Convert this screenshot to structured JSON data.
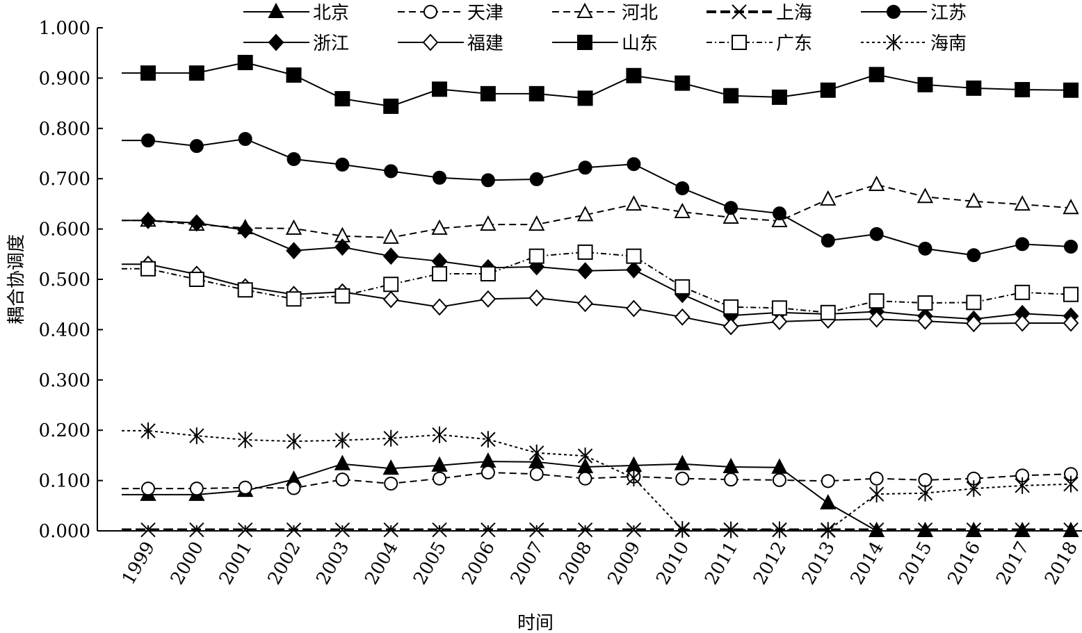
{
  "chart_data": {
    "type": "line",
    "title": "",
    "xlabel": "时间",
    "ylabel": "耦合协调度",
    "ylim": [
      0,
      1
    ],
    "yticks": [
      "0.000",
      "0.100",
      "0.200",
      "0.300",
      "0.400",
      "0.500",
      "0.600",
      "0.700",
      "0.800",
      "0.900",
      "1.000"
    ],
    "categories": [
      "1999",
      "2000",
      "2001",
      "2002",
      "2003",
      "2004",
      "2005",
      "2006",
      "2007",
      "2008",
      "2009",
      "2010",
      "2011",
      "2012",
      "2013",
      "2014",
      "2015",
      "2016",
      "2017",
      "2018"
    ],
    "legend_position": "top",
    "series": [
      {
        "name": "北京",
        "marker": "filled-triangle",
        "dash": "solid",
        "values": [
          0.072,
          0.072,
          0.08,
          0.102,
          0.133,
          0.124,
          0.13,
          0.138,
          0.137,
          0.127,
          0.13,
          0.133,
          0.127,
          0.126,
          0.055,
          0.0,
          0.0,
          0.0,
          0.0,
          0.0
        ]
      },
      {
        "name": "天津",
        "marker": "open-circle",
        "dash": "dashed",
        "values": [
          0.084,
          0.084,
          0.086,
          0.085,
          0.102,
          0.094,
          0.104,
          0.116,
          0.113,
          0.104,
          0.108,
          0.104,
          0.102,
          0.101,
          0.099,
          0.104,
          0.101,
          0.104,
          0.11,
          0.113
        ]
      },
      {
        "name": "河北",
        "marker": "open-triangle",
        "dash": "dashed",
        "values": [
          0.617,
          0.609,
          0.602,
          0.601,
          0.586,
          0.583,
          0.601,
          0.609,
          0.609,
          0.628,
          0.649,
          0.634,
          0.623,
          0.616,
          0.659,
          0.688,
          0.664,
          0.655,
          0.649,
          0.642
        ]
      },
      {
        "name": "上海",
        "marker": "x",
        "dash": "thick-dashed",
        "values": [
          0.002,
          0.002,
          0.002,
          0.002,
          0.002,
          0.002,
          0.002,
          0.002,
          0.002,
          0.002,
          0.002,
          0.002,
          0.002,
          0.002,
          0.002,
          0.002,
          0.002,
          0.002,
          0.002,
          0.002
        ]
      },
      {
        "name": "江苏",
        "marker": "filled-circle",
        "dash": "solid",
        "values": [
          0.776,
          0.765,
          0.779,
          0.739,
          0.728,
          0.715,
          0.702,
          0.697,
          0.699,
          0.722,
          0.729,
          0.681,
          0.642,
          0.631,
          0.577,
          0.59,
          0.561,
          0.548,
          0.57,
          0.565
        ]
      },
      {
        "name": "浙江",
        "marker": "filled-diamond",
        "dash": "solid",
        "values": [
          0.617,
          0.612,
          0.598,
          0.557,
          0.564,
          0.546,
          0.536,
          0.523,
          0.525,
          0.517,
          0.519,
          0.47,
          0.428,
          0.434,
          0.431,
          0.436,
          0.427,
          0.421,
          0.432,
          0.427
        ]
      },
      {
        "name": "福建",
        "marker": "open-diamond",
        "dash": "solid",
        "values": [
          0.53,
          0.51,
          0.485,
          0.47,
          0.475,
          0.46,
          0.445,
          0.461,
          0.463,
          0.452,
          0.442,
          0.425,
          0.406,
          0.416,
          0.419,
          0.421,
          0.417,
          0.412,
          0.413,
          0.413
        ]
      },
      {
        "name": "山东",
        "marker": "filled-square",
        "dash": "solid",
        "values": [
          0.91,
          0.91,
          0.931,
          0.906,
          0.859,
          0.844,
          0.878,
          0.869,
          0.869,
          0.86,
          0.905,
          0.89,
          0.865,
          0.862,
          0.876,
          0.907,
          0.887,
          0.88,
          0.877,
          0.876
        ]
      },
      {
        "name": "广东",
        "marker": "open-square",
        "dash": "dash-dot",
        "values": [
          0.521,
          0.5,
          0.479,
          0.461,
          0.467,
          0.49,
          0.511,
          0.511,
          0.546,
          0.554,
          0.546,
          0.485,
          0.445,
          0.443,
          0.434,
          0.457,
          0.453,
          0.454,
          0.474,
          0.47
        ]
      },
      {
        "name": "海南",
        "marker": "asterisk",
        "dash": "dotted",
        "values": [
          0.199,
          0.189,
          0.181,
          0.178,
          0.18,
          0.184,
          0.191,
          0.182,
          0.155,
          0.149,
          0.105,
          0.003,
          0.002,
          0.002,
          0.001,
          0.073,
          0.075,
          0.084,
          0.09,
          0.093
        ]
      }
    ]
  }
}
